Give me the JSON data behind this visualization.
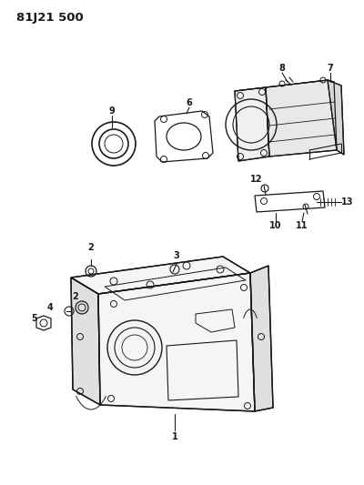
{
  "title": "81J21 500",
  "bg_color": "#ffffff",
  "line_color": "#1a1a1a",
  "title_fontsize": 9.5,
  "label_fontsize": 7,
  "figsize": [
    4.0,
    5.33
  ],
  "dpi": 100
}
